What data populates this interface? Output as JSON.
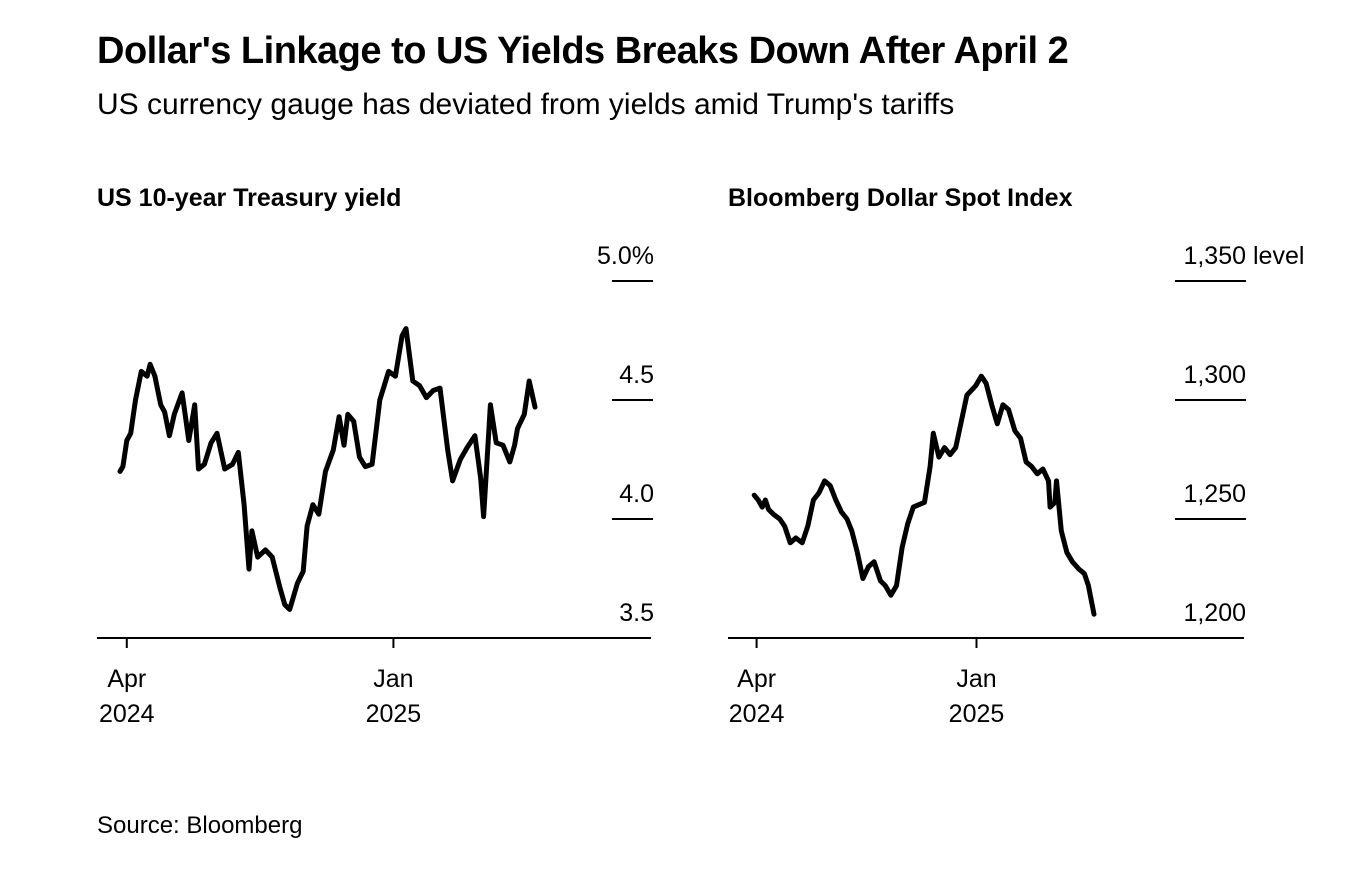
{
  "title": "Dollar's Linkage to US Yields Breaks Down After April 2",
  "subtitle": "US currency gauge has deviated from yields amid Trump's tariffs",
  "source": "Source: Bloomberg",
  "chart_data": [
    {
      "type": "line",
      "title": "US 10-year Treasury yield",
      "unit": "%",
      "ylim": [
        3.5,
        5.0
      ],
      "yticks": [
        {
          "value": 5.0,
          "label": "5.0%"
        },
        {
          "value": 4.5,
          "label": "4.5"
        },
        {
          "value": 4.0,
          "label": "4.0"
        },
        {
          "value": 3.5,
          "label": "3.5"
        }
      ],
      "x_range": [
        "2024-03-25",
        "2025-07-31"
      ],
      "xticks": [
        {
          "date": "2024-04-01",
          "label": [
            "Apr",
            "2024"
          ]
        },
        {
          "date": "2025-01-01",
          "label": [
            "Jan",
            "2025"
          ]
        }
      ],
      "grid": false,
      "series": [
        {
          "color": "#000000",
          "x": [
            "2024-03-25",
            "2024-03-28",
            "2024-04-01",
            "2024-04-05",
            "2024-04-10",
            "2024-04-16",
            "2024-04-22",
            "2024-04-25",
            "2024-04-30",
            "2024-05-06",
            "2024-05-10",
            "2024-05-15",
            "2024-05-20",
            "2024-05-28",
            "2024-06-04",
            "2024-06-10",
            "2024-06-14",
            "2024-06-20",
            "2024-06-27",
            "2024-07-03",
            "2024-07-11",
            "2024-07-19",
            "2024-07-25",
            "2024-07-31",
            "2024-08-05",
            "2024-08-08",
            "2024-08-14",
            "2024-08-22",
            "2024-08-29",
            "2024-09-06",
            "2024-09-11",
            "2024-09-16",
            "2024-09-24",
            "2024-09-30",
            "2024-10-04",
            "2024-10-10",
            "2024-10-16",
            "2024-10-23",
            "2024-10-31",
            "2024-11-06",
            "2024-11-11",
            "2024-11-15",
            "2024-11-21",
            "2024-11-27",
            "2024-12-03",
            "2024-12-10",
            "2024-12-18",
            "2024-12-27",
            "2025-01-03",
            "2025-01-10",
            "2025-01-14",
            "2025-01-21",
            "2025-01-28",
            "2025-02-04",
            "2025-02-11",
            "2025-02-18",
            "2025-02-26",
            "2025-03-03",
            "2025-03-11",
            "2025-03-18",
            "2025-03-26",
            "2025-04-01",
            "2025-04-04",
            "2025-04-09",
            "2025-04-11",
            "2025-04-17",
            "2025-04-24",
            "2025-05-01",
            "2025-05-06",
            "2025-05-09",
            "2025-05-16",
            "2025-05-21",
            "2025-05-27"
          ],
          "values": [
            4.2,
            4.22,
            4.33,
            4.36,
            4.5,
            4.62,
            4.6,
            4.65,
            4.6,
            4.48,
            4.45,
            4.35,
            4.44,
            4.53,
            4.33,
            4.48,
            4.21,
            4.23,
            4.32,
            4.36,
            4.21,
            4.23,
            4.28,
            4.06,
            3.79,
            3.95,
            3.84,
            3.87,
            3.84,
            3.71,
            3.64,
            3.62,
            3.73,
            3.78,
            3.97,
            4.06,
            4.02,
            4.2,
            4.29,
            4.43,
            4.31,
            4.44,
            4.41,
            4.26,
            4.22,
            4.23,
            4.5,
            4.62,
            4.6,
            4.77,
            4.8,
            4.58,
            4.56,
            4.51,
            4.54,
            4.55,
            4.29,
            4.16,
            4.25,
            4.3,
            4.35,
            4.17,
            4.01,
            4.34,
            4.48,
            4.32,
            4.31,
            4.24,
            4.31,
            4.38,
            4.44,
            4.58,
            4.47
          ]
        }
      ]
    },
    {
      "type": "line",
      "title": "Bloomberg Dollar Spot Index",
      "unit": "level",
      "ylim": [
        1200,
        1350
      ],
      "yticks": [
        {
          "value": 1350,
          "label": "1,350 level"
        },
        {
          "value": 1300,
          "label": "1,300"
        },
        {
          "value": 1250,
          "label": "1,250"
        },
        {
          "value": 1200,
          "label": "1,200"
        }
      ],
      "x_range": [
        "2024-03-25",
        "2025-08-31"
      ],
      "xticks": [
        {
          "date": "2024-04-01",
          "label": [
            "Apr",
            "2024"
          ]
        },
        {
          "date": "2025-01-01",
          "label": [
            "Jan",
            "2025"
          ]
        }
      ],
      "grid": false,
      "series": [
        {
          "color": "#000000",
          "x": [
            "2024-03-29",
            "2024-04-03",
            "2024-04-08",
            "2024-04-12",
            "2024-04-16",
            "2024-04-22",
            "2024-04-30",
            "2024-05-06",
            "2024-05-13",
            "2024-05-20",
            "2024-05-28",
            "2024-06-04",
            "2024-06-11",
            "2024-06-18",
            "2024-06-25",
            "2024-07-02",
            "2024-07-09",
            "2024-07-16",
            "2024-07-23",
            "2024-07-29",
            "2024-08-05",
            "2024-08-12",
            "2024-08-19",
            "2024-08-26",
            "2024-09-03",
            "2024-09-09",
            "2024-09-16",
            "2024-09-23",
            "2024-09-30",
            "2024-10-07",
            "2024-10-14",
            "2024-10-21",
            "2024-10-28",
            "2024-11-04",
            "2024-11-08",
            "2024-11-15",
            "2024-11-22",
            "2024-11-29",
            "2024-12-06",
            "2024-12-13",
            "2024-12-20",
            "2024-12-31",
            "2025-01-07",
            "2025-01-13",
            "2025-01-20",
            "2025-01-27",
            "2025-02-03",
            "2025-02-10",
            "2025-02-18",
            "2025-02-25",
            "2025-03-04",
            "2025-03-11",
            "2025-03-18",
            "2025-03-25",
            "2025-04-01",
            "2025-04-03",
            "2025-04-09",
            "2025-04-11",
            "2025-04-17",
            "2025-04-24",
            "2025-05-01",
            "2025-05-09",
            "2025-05-16",
            "2025-05-21",
            "2025-05-28"
          ],
          "values": [
            1260,
            1258,
            1255,
            1258,
            1254,
            1252,
            1250,
            1247,
            1240,
            1242,
            1240,
            1247,
            1258,
            1261,
            1266,
            1264,
            1258,
            1253,
            1250,
            1245,
            1236,
            1225,
            1230,
            1232,
            1224,
            1222,
            1218,
            1222,
            1238,
            1248,
            1255,
            1256,
            1257,
            1272,
            1286,
            1276,
            1280,
            1277,
            1280,
            1291,
            1302,
            1306,
            1310,
            1307,
            1298,
            1290,
            1298,
            1296,
            1287,
            1284,
            1274,
            1272,
            1269,
            1271,
            1266,
            1255,
            1257,
            1266,
            1245,
            1236,
            1232,
            1229,
            1227,
            1222,
            1210
          ]
        }
      ]
    }
  ]
}
